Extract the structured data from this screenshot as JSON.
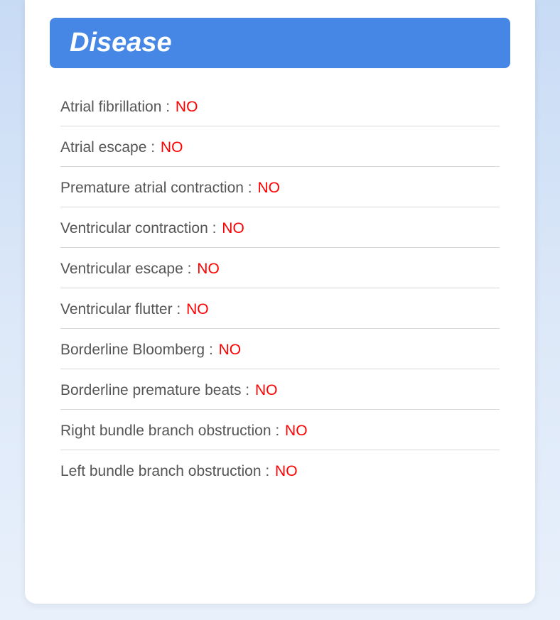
{
  "header": {
    "title": "Disease"
  },
  "colors": {
    "header_bg": "#4687e6",
    "header_text": "#ffffff",
    "card_bg": "#ffffff",
    "page_bg_top": "#c8dbf5",
    "page_bg_bottom": "#e8f0fb",
    "label_text": "#555555",
    "value_text": "#ff0000",
    "divider": "#d8d8d8"
  },
  "typography": {
    "title_fontsize": 38,
    "row_fontsize": 21,
    "font_family": "Arial"
  },
  "diseases": [
    {
      "label": "Atrial fibrillation :",
      "value": "NO"
    },
    {
      "label": "Atrial escape :",
      "value": "NO"
    },
    {
      "label": "Premature atrial contraction :",
      "value": "NO"
    },
    {
      "label": "Ventricular contraction :",
      "value": "NO"
    },
    {
      "label": "Ventricular escape :",
      "value": "NO"
    },
    {
      "label": "Ventricular flutter :",
      "value": "NO"
    },
    {
      "label": "Borderline Bloomberg :",
      "value": "NO"
    },
    {
      "label": "Borderline premature beats :",
      "value": "NO"
    },
    {
      "label": "Right bundle branch obstruction :",
      "value": "NO"
    },
    {
      "label": "Left bundle branch obstruction :",
      "value": "NO"
    }
  ]
}
